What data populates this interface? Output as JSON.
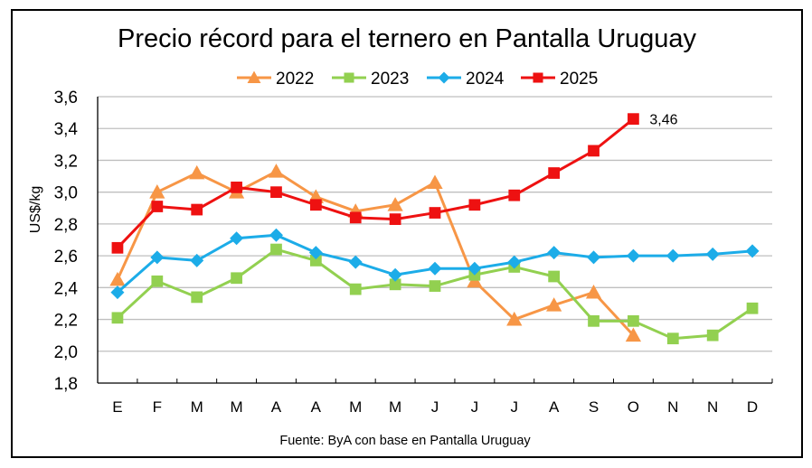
{
  "chart_data": {
    "type": "line",
    "title": "Precio récord para el ternero en Pantalla Uruguay",
    "xlabel": "",
    "ylabel": "US$/kg",
    "source": "Fuente: ByA con base en Pantalla Uruguay",
    "ylim": [
      1.8,
      3.6
    ],
    "yticks": [
      1.8,
      2.0,
      2.2,
      2.4,
      2.6,
      2.8,
      3.0,
      3.2,
      3.4,
      3.6
    ],
    "ytick_labels": [
      "1,8",
      "2,0",
      "2,2",
      "2,4",
      "2,6",
      "2,8",
      "3,0",
      "3,2",
      "3,4",
      "3,6"
    ],
    "grid": true,
    "legend_position": "top-center",
    "categories": [
      "E",
      "F",
      "M",
      "M",
      "A",
      "A",
      "M",
      "M",
      "J",
      "J",
      "J",
      "A",
      "S",
      "O",
      "N",
      "N",
      "D"
    ],
    "series": [
      {
        "name": "2022",
        "color": "#F79646",
        "marker": "triangle",
        "values": [
          2.45,
          3.0,
          3.12,
          3.0,
          3.13,
          2.97,
          2.88,
          2.92,
          3.06,
          2.44,
          2.2,
          2.29,
          2.37,
          2.1,
          null,
          null,
          null
        ]
      },
      {
        "name": "2023",
        "color": "#92D050",
        "marker": "square",
        "values": [
          2.21,
          2.44,
          2.34,
          2.46,
          2.64,
          2.57,
          2.39,
          2.42,
          2.41,
          2.48,
          2.53,
          2.47,
          2.19,
          2.19,
          2.08,
          2.1,
          2.27
        ]
      },
      {
        "name": "2024",
        "color": "#1CACE8",
        "marker": "diamond",
        "values": [
          2.37,
          2.59,
          2.57,
          2.71,
          2.73,
          2.62,
          2.56,
          2.48,
          2.52,
          2.52,
          2.56,
          2.62,
          2.59,
          2.6,
          2.6,
          2.61,
          2.63
        ]
      },
      {
        "name": "2025",
        "color": "#EE1111",
        "marker": "square",
        "values": [
          2.65,
          2.91,
          2.89,
          3.03,
          3.0,
          2.92,
          2.84,
          2.83,
          2.87,
          2.92,
          2.98,
          3.12,
          3.26,
          3.46,
          null,
          null,
          null
        ]
      }
    ],
    "annotations": [
      {
        "series": "2025",
        "category_index": 13,
        "text": "3,46"
      }
    ]
  }
}
